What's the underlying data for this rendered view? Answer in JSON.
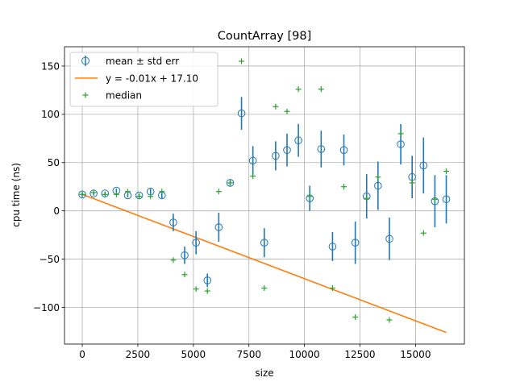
{
  "chart_data": {
    "type": "scatter",
    "title": "CountArray [98]",
    "xlabel": "size",
    "ylabel": "cpu time (ns)",
    "xlim": [
      -800,
      17200
    ],
    "ylim": [
      -138,
      170
    ],
    "grid": true,
    "legend_position": "top-left",
    "x_ticks": [
      0,
      2500,
      5000,
      7500,
      10000,
      12500,
      15000
    ],
    "x_tick_labels": [
      "0",
      "2500",
      "5000",
      "7500",
      "10000",
      "12500",
      "15000"
    ],
    "y_ticks": [
      -100,
      -50,
      0,
      50,
      100,
      150
    ],
    "y_tick_labels": [
      "−100",
      "−50",
      "0",
      "50",
      "100",
      "150"
    ],
    "series": [
      {
        "name": "mean ± std err",
        "kind": "errorbar",
        "color": "#1f77b4",
        "x": [
          0,
          512,
          1024,
          1536,
          2048,
          2560,
          3072,
          3584,
          4096,
          4608,
          5120,
          5632,
          6144,
          6656,
          7168,
          7680,
          8192,
          8704,
          9216,
          9728,
          10240,
          10752,
          11264,
          11776,
          12288,
          12800,
          13312,
          13824,
          14336,
          14848,
          15360,
          15872,
          16384
        ],
        "y": [
          17,
          18,
          18,
          21,
          16,
          16,
          20,
          16,
          -12,
          -46,
          -33,
          -72,
          -17,
          29,
          101,
          52,
          -33,
          57,
          63,
          73,
          13,
          64,
          -37,
          63,
          -33,
          15,
          26,
          -29,
          69,
          35,
          47,
          10,
          12
        ],
        "err": [
          2,
          2,
          2,
          2,
          2,
          2,
          3,
          3,
          9,
          9,
          12,
          7,
          15,
          3,
          17,
          15,
          15,
          15,
          17,
          17,
          13,
          19,
          15,
          16,
          22,
          23,
          25,
          22,
          21,
          22,
          29,
          27,
          25
        ]
      },
      {
        "name": "y = -0.01x + 17.10",
        "kind": "line",
        "color": "#ff7f0e",
        "x": [
          0,
          16384
        ],
        "y": [
          17.1,
          -126
        ]
      },
      {
        "name": "median",
        "kind": "marker",
        "color": "#2ca02c",
        "x": [
          0,
          512,
          1024,
          1536,
          2048,
          2560,
          3072,
          3584,
          4096,
          4608,
          5120,
          5632,
          6144,
          6656,
          7168,
          7680,
          8192,
          8704,
          9216,
          9728,
          10240,
          10752,
          11264,
          11776,
          12288,
          12800,
          13312,
          13824,
          14336,
          14848,
          15360,
          15872,
          16384
        ],
        "y": [
          17,
          19,
          17,
          17,
          20,
          15,
          15,
          20,
          -51,
          -66,
          -81,
          -83,
          20,
          29,
          155,
          36,
          -80,
          108,
          103,
          126,
          15,
          126,
          -80,
          25,
          -110,
          13,
          35,
          -113,
          80,
          29,
          -23,
          12,
          41
        ]
      }
    ]
  }
}
